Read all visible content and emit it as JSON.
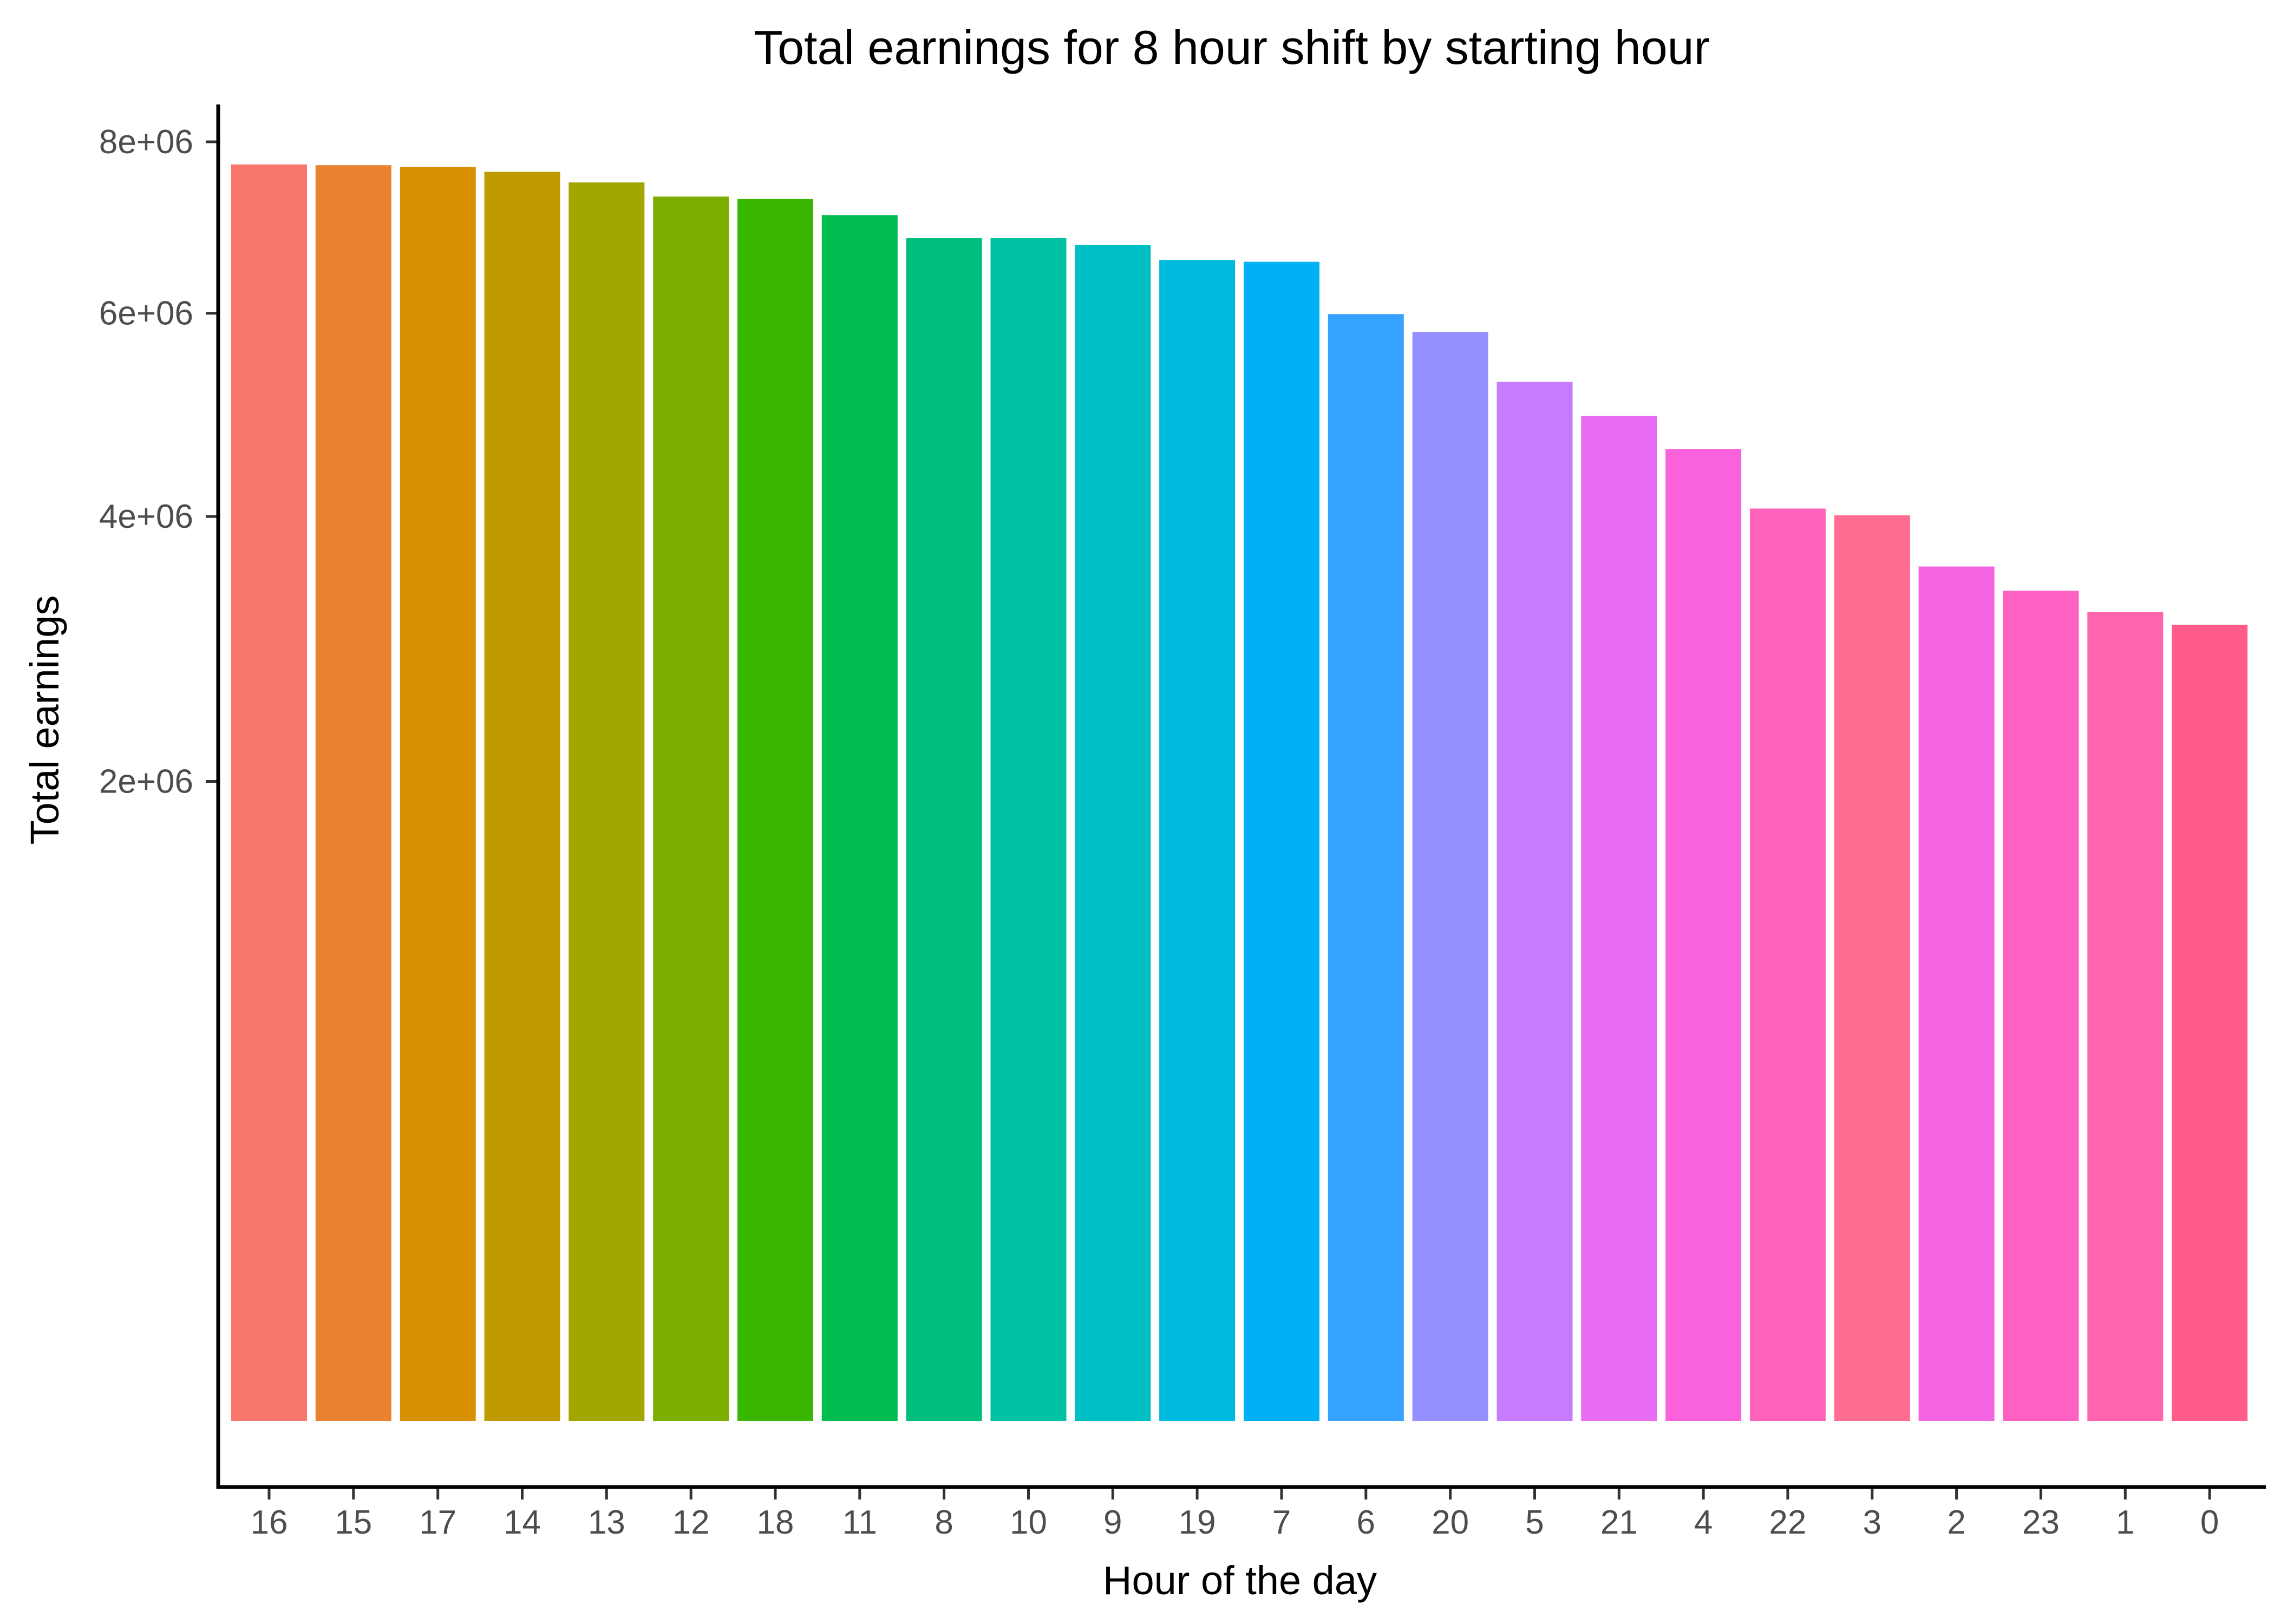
{
  "chart_data": {
    "type": "bar",
    "title": "Total earnings for 8 hour shift by starting hour",
    "xlabel": "Hour of the day",
    "ylabel": "Total earnings",
    "y_scale": "sqrt",
    "ylim": [
      0,
      8000000
    ],
    "y_ticks": [
      {
        "value": 2000000,
        "label": "2e+06"
      },
      {
        "value": 4000000,
        "label": "4e+06"
      },
      {
        "value": 6000000,
        "label": "6e+06"
      },
      {
        "value": 8000000,
        "label": "8e+06"
      }
    ],
    "grid": false,
    "legend": "none",
    "categories": [
      "16",
      "15",
      "17",
      "14",
      "13",
      "12",
      "18",
      "11",
      "8",
      "10",
      "9",
      "19",
      "7",
      "6",
      "20",
      "5",
      "21",
      "4",
      "22",
      "3",
      "2",
      "23",
      "1",
      "0"
    ],
    "values": [
      7720000,
      7710000,
      7690000,
      7630000,
      7500000,
      7330000,
      7300000,
      7110000,
      6840000,
      6840000,
      6760000,
      6590000,
      6570000,
      5990000,
      5800000,
      5280000,
      4940000,
      4620000,
      4070000,
      4010000,
      3570000,
      3370000,
      3200000,
      3100000
    ],
    "colors": [
      "#F8766D",
      "#EA8331",
      "#D89000",
      "#C09B00",
      "#A3A500",
      "#7CAE00",
      "#39B600",
      "#00BB4E",
      "#00BF7D",
      "#00C1A3",
      "#00BFC4",
      "#00BAE0",
      "#00B0F6",
      "#35A2FF",
      "#9590FF",
      "#C77CFF",
      "#E76BF3",
      "#FA62DB",
      "#FF62BC",
      "#FF6C91",
      "#F564E3",
      "#FF61C3",
      "#FF65AE",
      "#FF5B8B"
    ]
  }
}
